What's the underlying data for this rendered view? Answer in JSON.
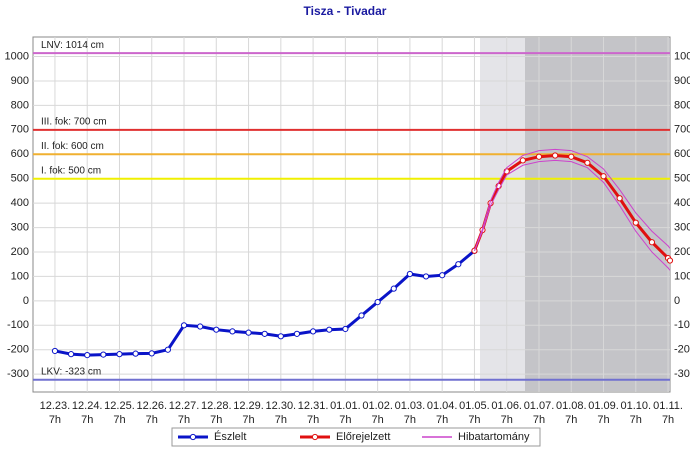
{
  "chart_data": {
    "type": "line",
    "title": "Tisza - Tivadar",
    "categories": [
      "12.23.",
      "12.24.",
      "12.25.",
      "12.26.",
      "12.27.",
      "12.28.",
      "12.29.",
      "12.30.",
      "12.31.",
      "01.01.",
      "01.02.",
      "01.03.",
      "01.04.",
      "01.05.",
      "01.06.",
      "01.07.",
      "01.08.",
      "01.09.",
      "01.10.",
      "01.11."
    ],
    "category_sublabel": "7h",
    "xlim": [
      -0.68,
      19.06
    ],
    "ylim": [
      -373,
      1080
    ],
    "yticks": [
      -300,
      -200,
      -100,
      0,
      100,
      200,
      300,
      400,
      500,
      600,
      700,
      800,
      900,
      1000
    ],
    "grid": true,
    "thresholds": [
      {
        "label": "LNV: 1014 cm",
        "value": 1014,
        "color": "#cc66cc"
      },
      {
        "label": "III. fok: 700 cm",
        "value": 700,
        "color": "#e03030"
      },
      {
        "label": "II. fok: 600 cm",
        "value": 600,
        "color": "#f0b030"
      },
      {
        "label": "I. fok: 500 cm",
        "value": 500,
        "color": "#f0f000"
      },
      {
        "label": "LKV: -323 cm",
        "value": -323,
        "color": "#7070d0"
      }
    ],
    "series": [
      {
        "name": "Észlelt",
        "color": "#0a14c8",
        "width": 3,
        "x": [
          0,
          0.5,
          1,
          1.5,
          2,
          2.5,
          3,
          3.5,
          4,
          4.5,
          5,
          5.5,
          6,
          6.5,
          7,
          7.5,
          8,
          8.5,
          9,
          9.5,
          10,
          10.5,
          11,
          11.5,
          12,
          12.5,
          13
        ],
        "values": [
          -205,
          -218,
          -222,
          -220,
          -218,
          -216,
          -215,
          -200,
          -100,
          -105,
          -118,
          -125,
          -130,
          -135,
          -145,
          -135,
          -125,
          -118,
          -115,
          -60,
          -5,
          50,
          110,
          100,
          105,
          150,
          205
        ]
      },
      {
        "name": "Előrejelzett",
        "color": "#e01010",
        "width": 3,
        "x": [
          13,
          13.25,
          13.5,
          13.75,
          14,
          14.5,
          15,
          15.5,
          16,
          16.5,
          17,
          17.5,
          18,
          18.5,
          19,
          19.06
        ],
        "values": [
          205,
          290,
          400,
          470,
          530,
          575,
          590,
          595,
          590,
          565,
          510,
          420,
          320,
          240,
          175,
          165
        ]
      },
      {
        "name": "Hibatartomány",
        "color": "#cc44cc",
        "width": 1,
        "band": true,
        "x": [
          13,
          13.25,
          13.5,
          13.75,
          14,
          14.5,
          15,
          15.5,
          16,
          16.5,
          17,
          17.5,
          18,
          18.5,
          19,
          19.06
        ],
        "upper": [
          205,
          295,
          410,
          485,
          545,
          595,
          615,
          620,
          615,
          590,
          540,
          455,
          360,
          285,
          225,
          215
        ],
        "lower": [
          205,
          285,
          390,
          455,
          515,
          555,
          570,
          575,
          570,
          545,
          485,
          390,
          285,
          200,
          135,
          125
        ]
      }
    ]
  }
}
